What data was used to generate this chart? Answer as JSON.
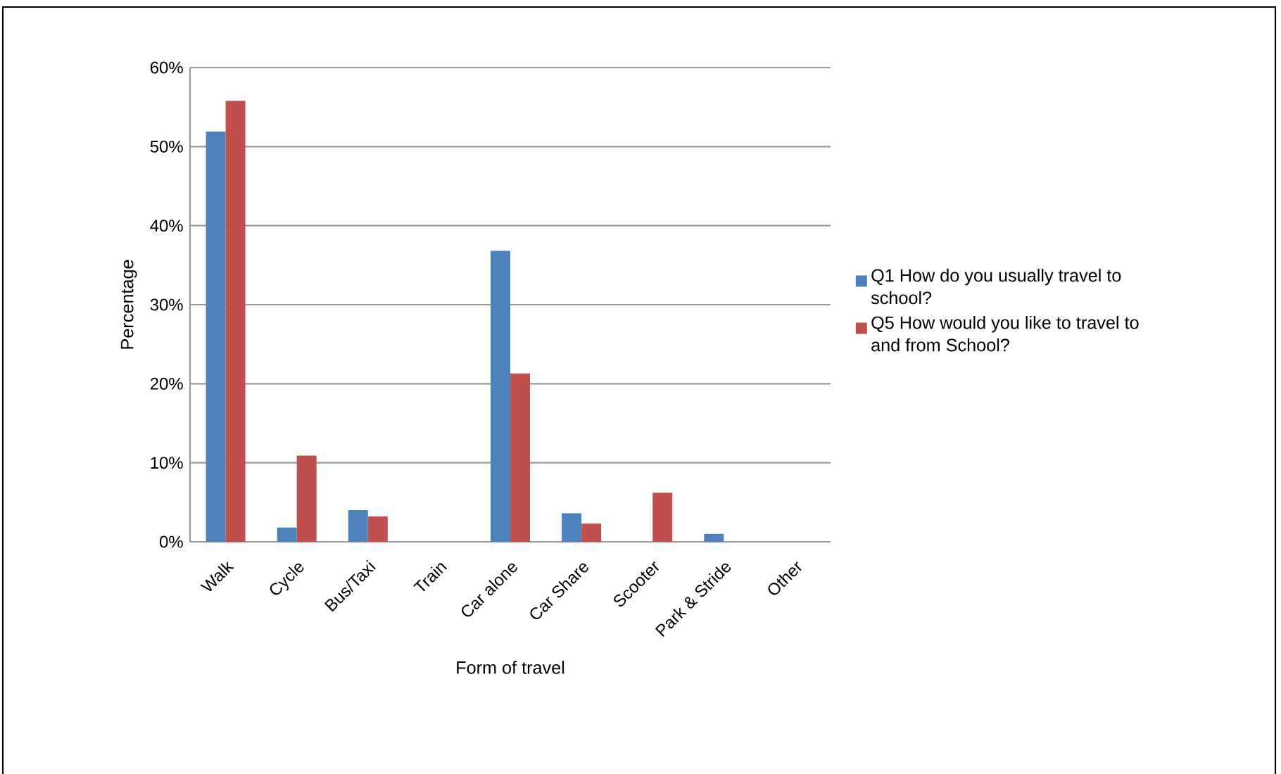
{
  "chart_data": {
    "type": "bar",
    "xlabel": "Form of travel",
    "ylabel": "Percentage",
    "categories": [
      "Walk",
      "Cycle",
      "Bus/Taxi",
      "Train",
      "Car alone",
      "Car Share",
      "Scooter",
      "Park & Stride",
      "Other"
    ],
    "series": [
      {
        "name": "Q1 How do you usually travel to school?",
        "color": "#4f81bd",
        "values": [
          51.9,
          1.8,
          4.0,
          0,
          36.8,
          3.6,
          0,
          1.0,
          0
        ]
      },
      {
        "name": "Q5 How would you like to travel to and from School?",
        "color": "#c0504d",
        "values": [
          55.8,
          10.9,
          3.2,
          0,
          21.3,
          2.3,
          6.2,
          0,
          0
        ]
      }
    ],
    "ylim": [
      0,
      60
    ],
    "yticks": [
      {
        "value": 0,
        "label": "0%"
      },
      {
        "value": 10,
        "label": "10%"
      },
      {
        "value": 20,
        "label": "20%"
      },
      {
        "value": 30,
        "label": "30%"
      },
      {
        "value": 40,
        "label": "40%"
      },
      {
        "value": 50,
        "label": "50%"
      },
      {
        "value": 60,
        "label": "60%"
      }
    ],
    "grid": "y",
    "legend": "right"
  }
}
